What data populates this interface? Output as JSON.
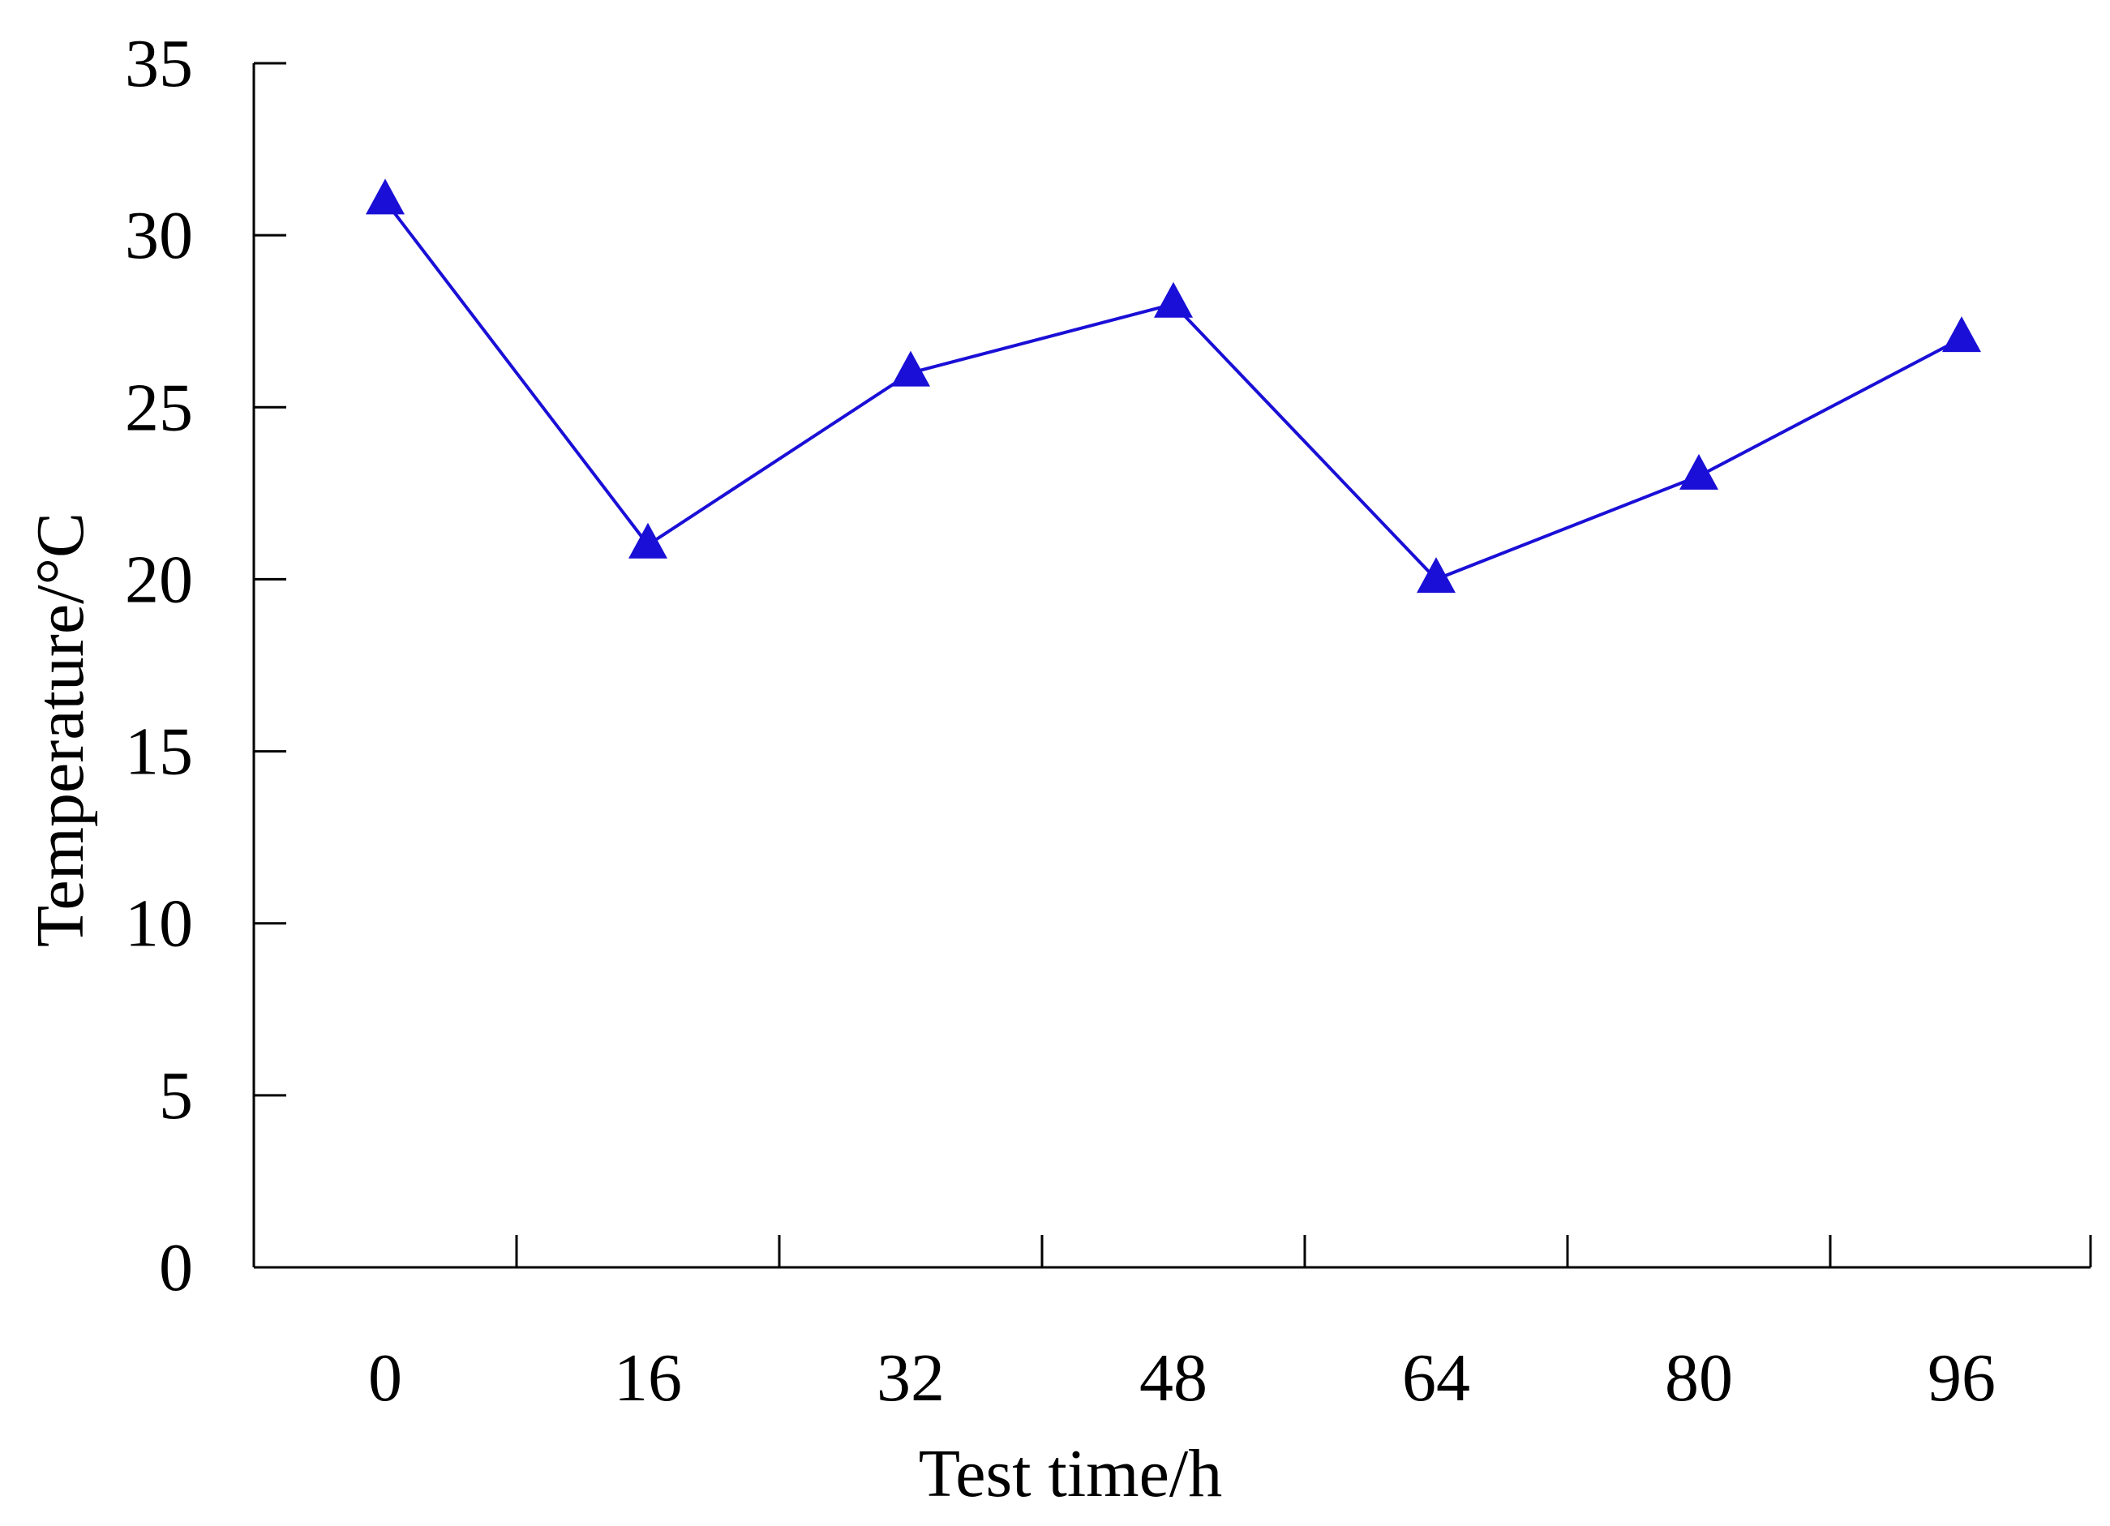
{
  "chart_data": {
    "type": "line",
    "title": "",
    "xlabel": "Test time/h",
    "ylabel": "Temperature/°C",
    "categories": [
      "0",
      "16",
      "32",
      "48",
      "64",
      "80",
      "96"
    ],
    "ylim": [
      0,
      35
    ],
    "yticks": [
      0,
      5,
      10,
      15,
      20,
      25,
      30,
      35
    ],
    "grid": false,
    "legend": "none",
    "series": [
      {
        "name": "Temperature",
        "marker": "triangle",
        "color": "#1a0fd6",
        "values": [
          31,
          21,
          26,
          28,
          20,
          23,
          27
        ]
      }
    ]
  }
}
